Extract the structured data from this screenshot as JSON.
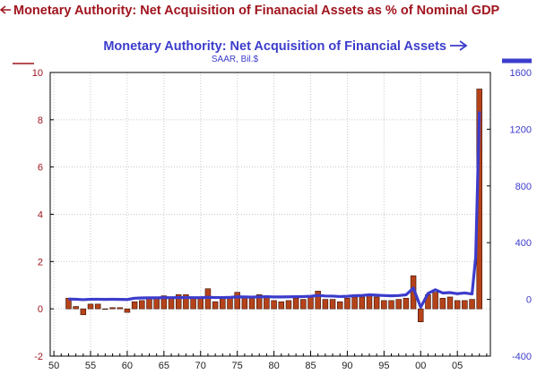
{
  "colors": {
    "left_series": "#a0141e",
    "bar_fill": "#b5431a",
    "right_series": "#3c3ccc",
    "gridline": "#c8c8c8",
    "axis": "#000000"
  },
  "chart_data": {
    "type": "bar",
    "title_left": "Monetary Authority: Net Acquisition of Finanacial Assets as % of Nominal GDP",
    "title_right": "Monetary Authority: Net Acquisition of Financial Assets",
    "subtitle_right": "SAAR, Bil.$",
    "x_tick_labels": [
      "50",
      "55",
      "60",
      "65",
      "70",
      "75",
      "80",
      "85",
      "90",
      "95",
      "00",
      "05"
    ],
    "x_tick_years": [
      1950,
      1955,
      1960,
      1965,
      1970,
      1975,
      1980,
      1985,
      1990,
      1995,
      2000,
      2005
    ],
    "xlim": [
      1949.5,
      2009.5
    ],
    "y_left": {
      "ticks": [
        -2,
        0,
        2,
        4,
        6,
        8,
        10
      ],
      "tick_labels": [
        "-2",
        "0",
        "2",
        "4",
        "6",
        "8",
        "10"
      ],
      "ylim": [
        -2,
        10
      ]
    },
    "y_right": {
      "ticks": [
        -400,
        0,
        400,
        800,
        1200,
        1600
      ],
      "tick_labels": [
        "-400",
        "0",
        "400",
        "800",
        "1200",
        "1600"
      ],
      "ylim": [
        -400,
        1600
      ]
    },
    "grid": true,
    "series": [
      {
        "axis": "left",
        "kind": "bar",
        "years": [
          1952,
          1953,
          1954,
          1955,
          1956,
          1957,
          1958,
          1959,
          1960,
          1961,
          1962,
          1963,
          1964,
          1965,
          1966,
          1967,
          1968,
          1969,
          1970,
          1971,
          1972,
          1973,
          1974,
          1975,
          1976,
          1977,
          1978,
          1979,
          1980,
          1981,
          1982,
          1983,
          1984,
          1985,
          1986,
          1987,
          1988,
          1989,
          1990,
          1991,
          1992,
          1993,
          1994,
          1995,
          1996,
          1997,
          1998,
          1999,
          2000,
          2001,
          2002,
          2003,
          2004,
          2005,
          2006,
          2007,
          2008
        ],
        "values": [
          0.45,
          0.1,
          -0.25,
          0.2,
          0.2,
          0.0,
          0.05,
          0.05,
          -0.15,
          0.3,
          0.35,
          0.45,
          0.45,
          0.55,
          0.5,
          0.6,
          0.6,
          0.5,
          0.5,
          0.85,
          0.3,
          0.45,
          0.5,
          0.7,
          0.5,
          0.5,
          0.6,
          0.55,
          0.35,
          0.3,
          0.35,
          0.45,
          0.4,
          0.55,
          0.75,
          0.4,
          0.4,
          0.3,
          0.45,
          0.5,
          0.5,
          0.6,
          0.5,
          0.35,
          0.35,
          0.4,
          0.45,
          1.4,
          -0.55,
          0.6,
          0.7,
          0.45,
          0.5,
          0.35,
          0.35,
          0.4,
          9.3
        ]
      },
      {
        "axis": "right",
        "kind": "line",
        "years": [
          1952,
          1953,
          1954,
          1955,
          1956,
          1957,
          1958,
          1959,
          1960,
          1961,
          1962,
          1963,
          1964,
          1965,
          1966,
          1967,
          1968,
          1969,
          1970,
          1971,
          1972,
          1973,
          1974,
          1975,
          1976,
          1977,
          1978,
          1979,
          1980,
          1981,
          1982,
          1983,
          1984,
          1985,
          1986,
          1987,
          1988,
          1989,
          1990,
          1991,
          1992,
          1993,
          1994,
          1995,
          1996,
          1997,
          1998,
          1999,
          2000,
          2001,
          2002,
          2003,
          2004,
          2005,
          2006,
          2007,
          2007.5,
          2008
        ],
        "values": [
          2,
          1,
          -2,
          1,
          1,
          0,
          1,
          0,
          -1,
          8,
          10,
          11,
          11,
          12,
          12,
          13,
          13,
          12,
          12,
          15,
          13,
          13,
          14,
          18,
          17,
          16,
          18,
          19,
          17,
          17,
          18,
          19,
          20,
          22,
          28,
          24,
          23,
          20,
          22,
          26,
          28,
          32,
          30,
          27,
          25,
          27,
          32,
          80,
          -55,
          42,
          68,
          45,
          48,
          40,
          45,
          38,
          300,
          1325
        ]
      }
    ]
  }
}
